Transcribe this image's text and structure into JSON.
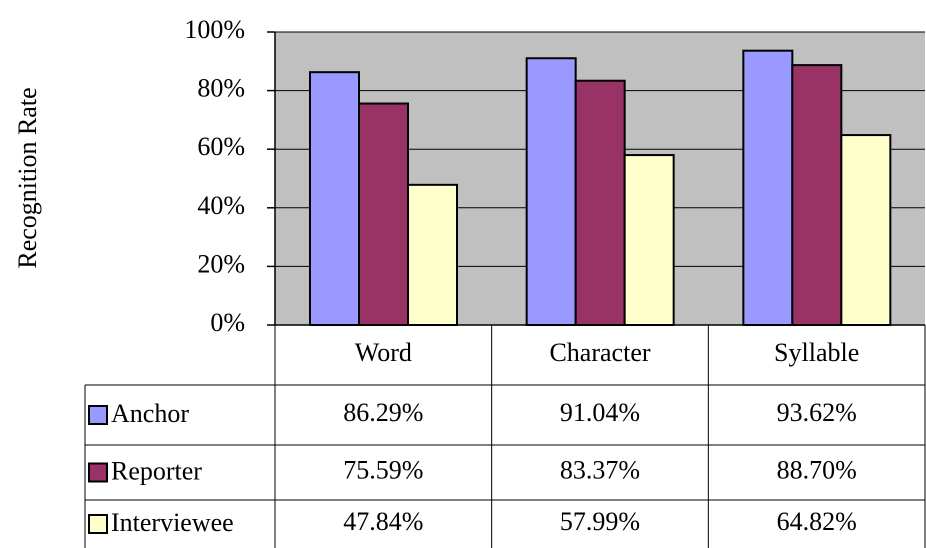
{
  "chart_data": {
    "type": "bar",
    "y_label": "Recognition Rate",
    "categories": [
      "Word",
      "Character",
      "Syllable"
    ],
    "series": [
      {
        "name": "Anchor",
        "color": "#9999ff",
        "values": [
          86.29,
          91.04,
          93.62
        ],
        "value_labels": [
          "86.29%",
          "91.04%",
          "93.62%"
        ]
      },
      {
        "name": "Reporter",
        "color": "#993366",
        "values": [
          75.59,
          83.37,
          88.7
        ],
        "value_labels": [
          "75.59%",
          "83.37%",
          "88.70%"
        ]
      },
      {
        "name": "Interviewee",
        "color": "#ffffcc",
        "values": [
          47.84,
          57.99,
          64.82
        ],
        "value_labels": [
          "47.84%",
          "57.99%",
          "64.82%"
        ]
      }
    ],
    "ylim": [
      0,
      100
    ],
    "yticks": [
      {
        "value": 0,
        "label": "0%"
      },
      {
        "value": 20,
        "label": "20%"
      },
      {
        "value": 40,
        "label": "40%"
      },
      {
        "value": 60,
        "label": "60%"
      },
      {
        "value": 80,
        "label": "80%"
      },
      {
        "value": 100,
        "label": "100%"
      }
    ],
    "grid": true,
    "plot_background": "#c0c0c0"
  }
}
